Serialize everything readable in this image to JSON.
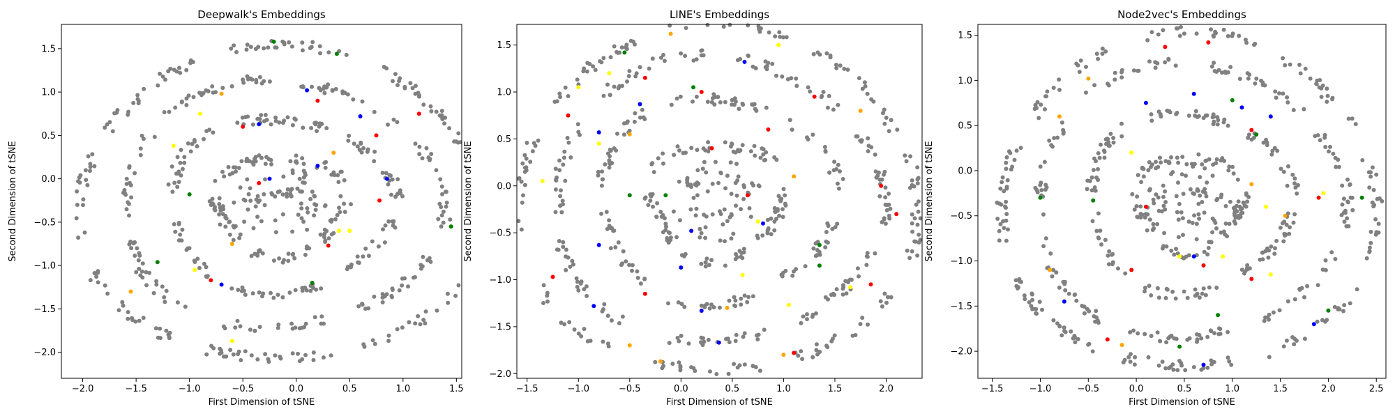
{
  "chart_data": [
    {
      "type": "scatter",
      "title": "Deepwalk's Embeddings",
      "xlabel": "First Dimension of tSNE",
      "ylabel": "Second Dimension of tSNE",
      "xlim": [
        -2.2,
        1.55
      ],
      "ylim": [
        -2.3,
        1.78
      ],
      "xticks": [
        "−2.0",
        "−1.5",
        "−1.0",
        "−0.5",
        "0.0",
        "0.5",
        "1.0",
        "1.5"
      ],
      "xtick_values": [
        -2.0,
        -1.5,
        -1.0,
        -0.5,
        0.0,
        0.5,
        1.0,
        1.5
      ],
      "yticks": [
        "−2.0",
        "−1.5",
        "−1.0",
        "−0.5",
        "0.0",
        "0.5",
        "1.0",
        "1.5"
      ],
      "ytick_values": [
        -2.0,
        -1.5,
        -1.0,
        -0.5,
        0.0,
        0.5,
        1.0,
        1.5
      ],
      "ring_radii": [
        0.6,
        1.05,
        1.5,
        1.9
      ],
      "center": [
        -0.15,
        -0.3
      ],
      "highlights": [
        {
          "x": -0.21,
          "y": 1.58,
          "c": "green"
        },
        {
          "x": 0.38,
          "y": 1.44,
          "c": "green"
        },
        {
          "x": 0.1,
          "y": 1.02,
          "c": "blue"
        },
        {
          "x": 0.2,
          "y": 0.9,
          "c": "red"
        },
        {
          "x": -0.7,
          "y": 0.98,
          "c": "orange"
        },
        {
          "x": -0.9,
          "y": 0.75,
          "c": "yellow"
        },
        {
          "x": -0.35,
          "y": 0.63,
          "c": "blue"
        },
        {
          "x": -0.5,
          "y": 0.6,
          "c": "red"
        },
        {
          "x": 0.6,
          "y": 0.72,
          "c": "blue"
        },
        {
          "x": 0.75,
          "y": 0.5,
          "c": "red"
        },
        {
          "x": 0.35,
          "y": 0.3,
          "c": "orange"
        },
        {
          "x": 0.2,
          "y": 0.15,
          "c": "blue"
        },
        {
          "x": -0.25,
          "y": 0.0,
          "c": "blue"
        },
        {
          "x": -0.35,
          "y": -0.05,
          "c": "red"
        },
        {
          "x": 0.85,
          "y": 0.0,
          "c": "blue"
        },
        {
          "x": 0.78,
          "y": -0.25,
          "c": "red"
        },
        {
          "x": 1.45,
          "y": -0.55,
          "c": "yellow"
        },
        {
          "x": 1.45,
          "y": -0.55,
          "c": "green"
        },
        {
          "x": 0.4,
          "y": -0.6,
          "c": "yellow"
        },
        {
          "x": 0.3,
          "y": -0.77,
          "c": "red"
        },
        {
          "x": -1.3,
          "y": -0.96,
          "c": "green"
        },
        {
          "x": -0.95,
          "y": -1.05,
          "c": "yellow"
        },
        {
          "x": -0.8,
          "y": -1.17,
          "c": "red"
        },
        {
          "x": -0.7,
          "y": -1.22,
          "c": "blue"
        },
        {
          "x": 0.15,
          "y": -1.2,
          "c": "green"
        },
        {
          "x": -1.55,
          "y": -1.3,
          "c": "orange"
        },
        {
          "x": -0.6,
          "y": -1.87,
          "c": "yellow"
        },
        {
          "x": -1.0,
          "y": -0.18,
          "c": "green"
        },
        {
          "x": 1.15,
          "y": 0.75,
          "c": "red"
        },
        {
          "x": -1.15,
          "y": 0.38,
          "c": "yellow"
        },
        {
          "x": -0.6,
          "y": -0.75,
          "c": "orange"
        },
        {
          "x": 0.5,
          "y": -0.6,
          "c": "yellow"
        }
      ]
    },
    {
      "type": "scatter",
      "title": "LINE's Embeddings",
      "xlabel": "First Dimension of tSNE",
      "ylabel": "Second Dimension of tSNE",
      "xlim": [
        -1.6,
        2.35
      ],
      "ylim": [
        -2.05,
        1.72
      ],
      "xticks": [
        "−1.5",
        "−1.0",
        "−0.5",
        "0.0",
        "0.5",
        "1.0",
        "1.5",
        "2.0"
      ],
      "xtick_values": [
        -1.5,
        -1.0,
        -0.5,
        0.0,
        0.5,
        1.0,
        1.5,
        2.0
      ],
      "yticks": [
        "−2.0",
        "−1.5",
        "−1.0",
        "−0.5",
        "0.0",
        "0.5",
        "1.0",
        "1.5"
      ],
      "ytick_values": [
        -2.0,
        -1.5,
        -1.0,
        -0.5,
        0.0,
        0.5,
        1.0,
        1.5
      ],
      "ring_radii": [
        0.65,
        1.15,
        1.6,
        1.95
      ],
      "center": [
        0.35,
        -0.15
      ],
      "highlights": [
        {
          "x": -0.1,
          "y": 1.62,
          "c": "orange"
        },
        {
          "x": 0.95,
          "y": 1.5,
          "c": "yellow"
        },
        {
          "x": -0.7,
          "y": 1.2,
          "c": "yellow"
        },
        {
          "x": -1.0,
          "y": 1.05,
          "c": "yellow"
        },
        {
          "x": -0.55,
          "y": 1.42,
          "c": "green"
        },
        {
          "x": 0.62,
          "y": 1.32,
          "c": "blue"
        },
        {
          "x": 0.12,
          "y": 1.05,
          "c": "green"
        },
        {
          "x": 0.2,
          "y": 1.0,
          "c": "red"
        },
        {
          "x": -0.35,
          "y": 1.15,
          "c": "red"
        },
        {
          "x": -0.4,
          "y": 0.87,
          "c": "blue"
        },
        {
          "x": 1.3,
          "y": 0.95,
          "c": "red"
        },
        {
          "x": 1.75,
          "y": 0.8,
          "c": "orange"
        },
        {
          "x": -0.8,
          "y": 0.45,
          "c": "yellow"
        },
        {
          "x": -0.8,
          "y": 0.57,
          "c": "blue"
        },
        {
          "x": -1.1,
          "y": 0.75,
          "c": "red"
        },
        {
          "x": 0.3,
          "y": 0.4,
          "c": "red"
        },
        {
          "x": 0.85,
          "y": 0.6,
          "c": "red"
        },
        {
          "x": 1.1,
          "y": 0.1,
          "c": "orange"
        },
        {
          "x": 1.95,
          "y": 0.0,
          "c": "red"
        },
        {
          "x": 2.1,
          "y": -0.3,
          "c": "red"
        },
        {
          "x": -0.15,
          "y": -0.1,
          "c": "green"
        },
        {
          "x": 0.65,
          "y": -0.1,
          "c": "red"
        },
        {
          "x": 0.8,
          "y": -0.4,
          "c": "blue"
        },
        {
          "x": 0.75,
          "y": -0.38,
          "c": "yellow"
        },
        {
          "x": 0.1,
          "y": -0.48,
          "c": "blue"
        },
        {
          "x": -0.8,
          "y": -0.63,
          "c": "blue"
        },
        {
          "x": -1.35,
          "y": 0.05,
          "c": "yellow"
        },
        {
          "x": -1.25,
          "y": -0.97,
          "c": "red"
        },
        {
          "x": 0.0,
          "y": -0.87,
          "c": "blue"
        },
        {
          "x": -0.35,
          "y": -1.15,
          "c": "red"
        },
        {
          "x": 0.45,
          "y": -1.3,
          "c": "orange"
        },
        {
          "x": 0.2,
          "y": -1.33,
          "c": "blue"
        },
        {
          "x": -0.85,
          "y": -1.28,
          "c": "blue"
        },
        {
          "x": -0.5,
          "y": -1.7,
          "c": "orange"
        },
        {
          "x": -0.2,
          "y": -1.87,
          "c": "orange"
        },
        {
          "x": 0.37,
          "y": -1.67,
          "c": "blue"
        },
        {
          "x": 1.0,
          "y": -1.8,
          "c": "orange"
        },
        {
          "x": 1.1,
          "y": -1.78,
          "c": "red"
        },
        {
          "x": 1.65,
          "y": -1.08,
          "c": "yellow"
        },
        {
          "x": 1.85,
          "y": -1.05,
          "c": "red"
        },
        {
          "x": 1.35,
          "y": -0.63,
          "c": "green"
        },
        {
          "x": 1.35,
          "y": -0.85,
          "c": "green"
        },
        {
          "x": 1.05,
          "y": -1.27,
          "c": "yellow"
        },
        {
          "x": 0.6,
          "y": -0.95,
          "c": "yellow"
        },
        {
          "x": -0.5,
          "y": -0.1,
          "c": "green"
        },
        {
          "x": -0.5,
          "y": 0.55,
          "c": "orange"
        }
      ]
    },
    {
      "type": "scatter",
      "title": "Node2vec's Embeddings",
      "xlabel": "First Dimension of tSNE",
      "ylabel": "Second Dimension of tSNE",
      "xlim": [
        -1.65,
        2.6
      ],
      "ylim": [
        -2.3,
        1.62
      ],
      "xticks": [
        "−1.5",
        "−1.0",
        "−0.5",
        "0.0",
        "0.5",
        "1.0",
        "1.5",
        "2.0",
        "2.5"
      ],
      "xtick_values": [
        -1.5,
        -1.0,
        -0.5,
        0.0,
        0.5,
        1.0,
        1.5,
        2.0,
        2.5
      ],
      "yticks": [
        "−2.0",
        "−1.5",
        "−1.0",
        "−0.5",
        "0.0",
        "0.5",
        "1.0",
        "1.5"
      ],
      "ytick_values": [
        -2.0,
        -1.5,
        -1.0,
        -0.5,
        0.0,
        0.5,
        1.0,
        1.5
      ],
      "ring_radii": [
        0.55,
        1.05,
        1.6,
        1.95
      ],
      "center": [
        0.55,
        -0.35
      ],
      "highlights": [
        {
          "x": 0.75,
          "y": 1.42,
          "c": "red"
        },
        {
          "x": 0.3,
          "y": 1.37,
          "c": "red"
        },
        {
          "x": -0.5,
          "y": 1.02,
          "c": "orange"
        },
        {
          "x": -0.8,
          "y": 0.6,
          "c": "orange"
        },
        {
          "x": 0.1,
          "y": 0.75,
          "c": "blue"
        },
        {
          "x": 0.6,
          "y": 0.85,
          "c": "blue"
        },
        {
          "x": 1.0,
          "y": 0.78,
          "c": "green"
        },
        {
          "x": 1.1,
          "y": 0.7,
          "c": "blue"
        },
        {
          "x": 1.2,
          "y": 0.45,
          "c": "red"
        },
        {
          "x": 1.25,
          "y": 0.4,
          "c": "green"
        },
        {
          "x": 1.4,
          "y": 0.6,
          "c": "blue"
        },
        {
          "x": -0.05,
          "y": 0.2,
          "c": "yellow"
        },
        {
          "x": 0.1,
          "y": -0.4,
          "c": "red"
        },
        {
          "x": 0.6,
          "y": -0.95,
          "c": "blue"
        },
        {
          "x": 0.7,
          "y": -1.05,
          "c": "red"
        },
        {
          "x": 0.45,
          "y": -0.95,
          "c": "yellow"
        },
        {
          "x": 0.9,
          "y": -0.95,
          "c": "yellow"
        },
        {
          "x": 1.2,
          "y": -1.2,
          "c": "red"
        },
        {
          "x": 1.35,
          "y": -0.4,
          "c": "yellow"
        },
        {
          "x": 1.55,
          "y": -0.5,
          "c": "orange"
        },
        {
          "x": 1.9,
          "y": -0.3,
          "c": "red"
        },
        {
          "x": 1.95,
          "y": -0.25,
          "c": "yellow"
        },
        {
          "x": 2.35,
          "y": -0.3,
          "c": "green"
        },
        {
          "x": -1.0,
          "y": -0.3,
          "c": "green"
        },
        {
          "x": -0.45,
          "y": -0.33,
          "c": "green"
        },
        {
          "x": -0.9,
          "y": -1.1,
          "c": "orange"
        },
        {
          "x": -0.75,
          "y": -1.45,
          "c": "blue"
        },
        {
          "x": -0.05,
          "y": -1.1,
          "c": "red"
        },
        {
          "x": -0.3,
          "y": -1.87,
          "c": "red"
        },
        {
          "x": -0.15,
          "y": -1.93,
          "c": "orange"
        },
        {
          "x": 0.45,
          "y": -1.95,
          "c": "green"
        },
        {
          "x": 0.7,
          "y": -2.15,
          "c": "blue"
        },
        {
          "x": 0.85,
          "y": -1.6,
          "c": "green"
        },
        {
          "x": 1.85,
          "y": -1.7,
          "c": "blue"
        },
        {
          "x": 2.0,
          "y": -1.55,
          "c": "green"
        },
        {
          "x": 1.4,
          "y": -1.15,
          "c": "yellow"
        },
        {
          "x": 1.2,
          "y": -0.15,
          "c": "orange"
        }
      ]
    }
  ],
  "colors": {
    "background_points": "#808080",
    "red": "#ff0000",
    "blue": "#0000ff",
    "green": "#008000",
    "orange": "#ffa500",
    "yellow": "#ffff00"
  }
}
